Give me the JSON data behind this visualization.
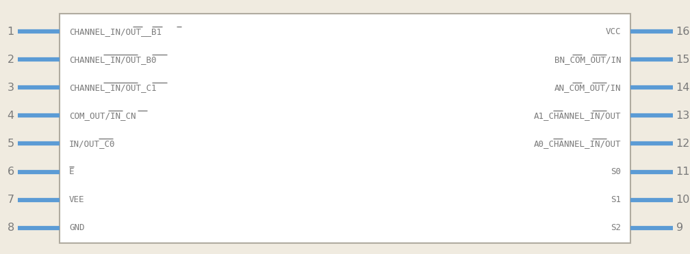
{
  "bg_color": "#f0ebe0",
  "box_color": "#b0aba0",
  "box_fill": "#ffffff",
  "pin_color": "#5b9bd5",
  "text_color": "#7a7a7a",
  "label_color": "#7a7a7a",
  "fig_width": 10.08,
  "fig_height": 3.72,
  "left_labels": [
    "CHANNEL_IN/OUT__B1",
    "CHANNEL_IN/OUT_B0",
    "CHANNEL_IN/OUT_C1",
    "COM_OUT/IN_CN",
    "IN/OUT_C0",
    "E",
    "VEE",
    "GND"
  ],
  "right_labels": [
    "VCC",
    "BN_COM_OUT/IN",
    "AN_COM_OUT/IN",
    "A1_CHANNEL_IN/OUT",
    "A0_CHANNEL_IN/OUT",
    "S0",
    "S1",
    "S2"
  ],
  "left_pin_nums": [
    1,
    2,
    3,
    4,
    5,
    6,
    7,
    8
  ],
  "right_pin_nums": [
    16,
    15,
    14,
    13,
    12,
    11,
    10,
    9
  ],
  "left_has_pin": [
    true,
    true,
    true,
    true,
    true,
    true,
    true,
    true
  ],
  "right_has_pin": [
    true,
    true,
    true,
    true,
    true,
    true,
    true,
    true
  ],
  "left_overlines": [
    [
      [
        13,
        14
      ],
      [
        17,
        18
      ],
      [
        22,
        22
      ]
    ],
    [
      [
        7,
        13
      ],
      [
        17,
        19
      ]
    ],
    [
      [
        7,
        13
      ],
      [
        17,
        19
      ]
    ],
    [
      [
        8,
        10
      ],
      [
        14,
        15
      ]
    ],
    [
      [
        6,
        8
      ]
    ],
    [
      [
        0,
        0
      ]
    ],
    [],
    []
  ],
  "right_overlines": [
    [],
    [
      [
        3,
        4
      ],
      [
        7,
        9
      ]
    ],
    [
      [
        3,
        4
      ],
      [
        7,
        9
      ]
    ],
    [
      [
        3,
        4
      ],
      [
        11,
        13
      ]
    ],
    [
      [
        3,
        4
      ],
      [
        11,
        13
      ]
    ],
    [],
    [],
    []
  ]
}
